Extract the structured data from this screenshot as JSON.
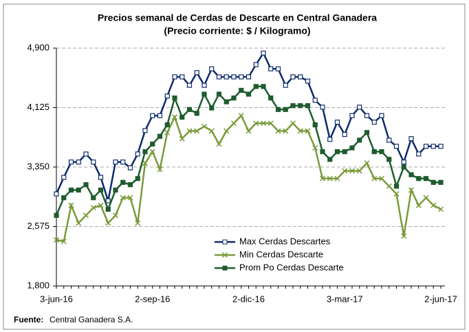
{
  "chart_data": {
    "type": "line",
    "title": "Precios semanal de Cerdas de Descarte en Central Ganadera",
    "subtitle": "(Precio corriente: $ / Kilogramo)",
    "categories": [
      "3-jun-16",
      null,
      null,
      null,
      null,
      null,
      null,
      null,
      null,
      null,
      null,
      null,
      null,
      "2-sep-16",
      null,
      null,
      null,
      null,
      null,
      null,
      null,
      null,
      null,
      null,
      null,
      null,
      "2-dic-16",
      null,
      null,
      null,
      null,
      null,
      null,
      null,
      null,
      null,
      null,
      null,
      null,
      "3-mar-17",
      null,
      null,
      null,
      null,
      null,
      null,
      null,
      null,
      null,
      null,
      null,
      null,
      "2-jun-17"
    ],
    "series": [
      {
        "name": "Max Cerdas Descartes",
        "color": "#0d2a6b",
        "marker": "open-square",
        "values": [
          3000,
          3215,
          3415,
          3415,
          3520,
          3415,
          3215,
          2910,
          3415,
          3415,
          3340,
          3520,
          3825,
          4020,
          4020,
          4275,
          4525,
          4525,
          4415,
          4580,
          4415,
          4630,
          4525,
          4525,
          4525,
          4525,
          4525,
          4685,
          4835,
          4630,
          4630,
          4415,
          4525,
          4525,
          4470,
          4220,
          4130,
          3710,
          3935,
          3775,
          4020,
          4130,
          4020,
          3935,
          4020,
          3700,
          3620,
          3415,
          3720,
          3520,
          3620,
          3620,
          3620
        ]
      },
      {
        "name": "Min Cerdas Descarte",
        "color": "#7a9a3a",
        "marker": "cross",
        "values": [
          2400,
          2380,
          2850,
          2620,
          2720,
          2820,
          2850,
          2620,
          2720,
          2950,
          2950,
          2620,
          3400,
          3550,
          3320,
          3800,
          4000,
          3720,
          3820,
          3820,
          3880,
          3820,
          3650,
          3820,
          3920,
          4020,
          3820,
          3920,
          3920,
          3920,
          3820,
          3820,
          3920,
          3820,
          3820,
          3600,
          3200,
          3200,
          3200,
          3300,
          3300,
          3300,
          3400,
          3200,
          3200,
          3100,
          3000,
          2450,
          3050,
          2850,
          2950,
          2850,
          2800
        ]
      },
      {
        "name": "Prom Po Cerdas Descarte",
        "color": "#1e5c2e",
        "marker": "filled-square",
        "values": [
          2720,
          2950,
          3050,
          3050,
          3120,
          2950,
          3050,
          2800,
          3050,
          3150,
          3120,
          3200,
          3550,
          3650,
          3750,
          3900,
          4250,
          4000,
          4100,
          4050,
          4300,
          4120,
          4300,
          4200,
          4250,
          4350,
          4300,
          4400,
          4400,
          4250,
          4100,
          4100,
          4150,
          4150,
          4150,
          3900,
          3550,
          3450,
          3550,
          3550,
          3600,
          3700,
          3800,
          3550,
          3550,
          3450,
          3100,
          3350,
          3250,
          3200,
          3200,
          3150,
          3150
        ]
      }
    ],
    "ylim": [
      1800,
      4900
    ],
    "yticks": [
      {
        "value": 1800,
        "label": "1,800"
      },
      {
        "value": 2575,
        "label": "2,575"
      },
      {
        "value": 3350,
        "label": "3,350"
      },
      {
        "value": 4125,
        "label": "4,125"
      },
      {
        "value": 4900,
        "label": "4,900"
      }
    ],
    "grid": true,
    "legend": "bottom-center",
    "source_label": "Fuente:",
    "source": "Central Ganadera S.A."
  }
}
